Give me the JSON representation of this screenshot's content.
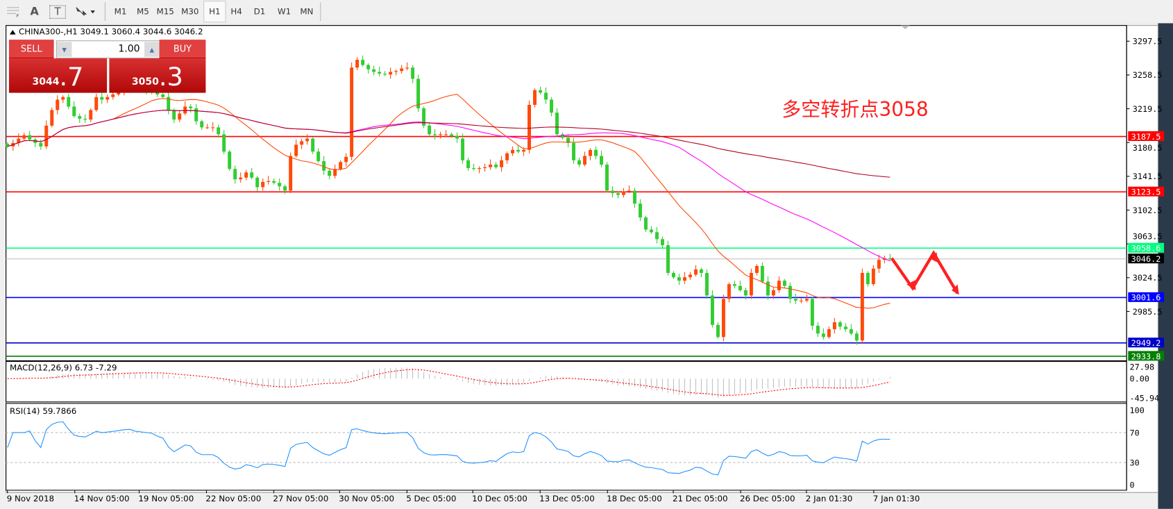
{
  "toolbar": {
    "tools": [
      {
        "icon": "period-separator-icon"
      },
      {
        "icon": "text-icon",
        "label": "A"
      },
      {
        "icon": "text-label-icon",
        "label": "T"
      },
      {
        "icon": "arrows-icon"
      }
    ],
    "timeframes": [
      "M1",
      "M5",
      "M15",
      "M30",
      "H1",
      "H4",
      "D1",
      "W1",
      "MN"
    ],
    "selected": "H1"
  },
  "chart": {
    "header": "CHINA300-,H1  3049.1 3060.4 3044.6 3046.2",
    "annotation": "多空转折点3058",
    "annotation_color": "#ff2020"
  },
  "trade_panel": {
    "sell_label": "SELL",
    "buy_label": "BUY",
    "lot": "1.00",
    "sell_main": "3044",
    "sell_frac": ".7",
    "buy_main": "3050",
    "buy_frac": ".3"
  },
  "chart_data": {
    "type": "candlestick",
    "symbol": "CHINA300-",
    "timeframe": "H1",
    "last_bar": {
      "open": 3049.1,
      "high": 3060.4,
      "low": 3044.6,
      "close": 3046.2
    },
    "ylim": [
      2928.6,
      3314.8
    ],
    "y_ticks": [
      "3297.5",
      "3258.5",
      "3219.5",
      "3180.5",
      "3141.5",
      "3102.5",
      "3063.5",
      "3024.5",
      "2985.5"
    ],
    "x_ticks": [
      "9 Nov 2018",
      "14 Nov 05:00",
      "19 Nov 05:00",
      "22 Nov 05:00",
      "27 Nov 05:00",
      "30 Nov 05:00",
      "5 Dec 05:00",
      "10 Dec 05:00",
      "13 Dec 05:00",
      "18 Dec 05:00",
      "21 Dec 05:00",
      "26 Dec 05:00",
      "2 Jan 01:30",
      "7 Jan 01:30"
    ],
    "closes": [
      3176,
      3180,
      3185,
      3189,
      3184,
      3180,
      3176,
      3200,
      3218,
      3230,
      3233,
      3222,
      3211,
      3208,
      3207,
      3218,
      3233,
      3230,
      3233,
      3236,
      3240,
      3244,
      3246,
      3243,
      3242,
      3241,
      3240,
      3236,
      3233,
      3218,
      3207,
      3214,
      3222,
      3220,
      3205,
      3198,
      3198,
      3198,
      3190,
      3170,
      3150,
      3138,
      3140,
      3146,
      3140,
      3129,
      3135,
      3136,
      3134,
      3130,
      3125,
      3165,
      3178,
      3182,
      3185,
      3170,
      3159,
      3148,
      3142,
      3150,
      3158,
      3164,
      3267,
      3276,
      3270,
      3265,
      3262,
      3260,
      3259,
      3262,
      3263,
      3266,
      3267,
      3254,
      3220,
      3200,
      3190,
      3189,
      3190,
      3190,
      3188,
      3185,
      3160,
      3151,
      3150,
      3151,
      3152,
      3155,
      3152,
      3160,
      3168,
      3172,
      3170,
      3172,
      3224,
      3241,
      3238,
      3230,
      3215,
      3190,
      3186,
      3180,
      3160,
      3155,
      3165,
      3172,
      3165,
      3155,
      3125,
      3122,
      3120,
      3124,
      3125,
      3110,
      3094,
      3080,
      3077,
      3069,
      3062,
      3030,
      3025,
      3021,
      3025,
      3028,
      3034,
      3030,
      3004,
      2970,
      2956,
      3000,
      3017,
      3015,
      3010,
      3004,
      3030,
      3038,
      3020,
      3004,
      3010,
      3021,
      3015,
      3000,
      2998,
      2998,
      3000,
      2969,
      2960,
      2956,
      2965,
      2973,
      2968,
      2965,
      2960,
      2952,
      3030,
      3017,
      3035,
      3045,
      3047,
      3046.2
    ],
    "up_color": "#ff4a0a",
    "down_color": "#32cd32",
    "levels": [
      {
        "value": "3187.5",
        "color": "#ff0000",
        "label_text": "#ffffff"
      },
      {
        "value": "3123.5",
        "color": "#ff0000",
        "label_text": "#ffffff"
      },
      {
        "value": "3058.6",
        "color": "#00ff7f",
        "label_text": "#ffffff"
      },
      {
        "value": "3046.2",
        "color": "#c0c0c0",
        "label_bg": "#000000",
        "label_text": "#ffffff"
      },
      {
        "value": "3001.6",
        "color": "#0000ff",
        "label_text": "#ffffff"
      },
      {
        "value": "2949.2",
        "color": "#0000cd",
        "label_text": "#ffffff"
      },
      {
        "value": "2933.8",
        "color": "#008000",
        "label_text": "#ffffff"
      }
    ],
    "moving_averages": [
      {
        "color": "#ff4500"
      },
      {
        "color": "#ff00ff"
      },
      {
        "color": "#b00020"
      }
    ],
    "macd": {
      "label": "MACD(12,26,9) 6.73 -7.29",
      "ticks": [
        "27.98",
        "0.00",
        "-45.94"
      ],
      "ylim": [
        -45.94,
        27.98
      ],
      "signal_color": "#ff0000",
      "hist_color": "#c0c0c0"
    },
    "rsi": {
      "label": "RSI(14) 59.7866",
      "ticks": [
        "100",
        "70",
        "30",
        "0"
      ],
      "levels": [
        70,
        30
      ],
      "color": "#1e90ff"
    }
  }
}
